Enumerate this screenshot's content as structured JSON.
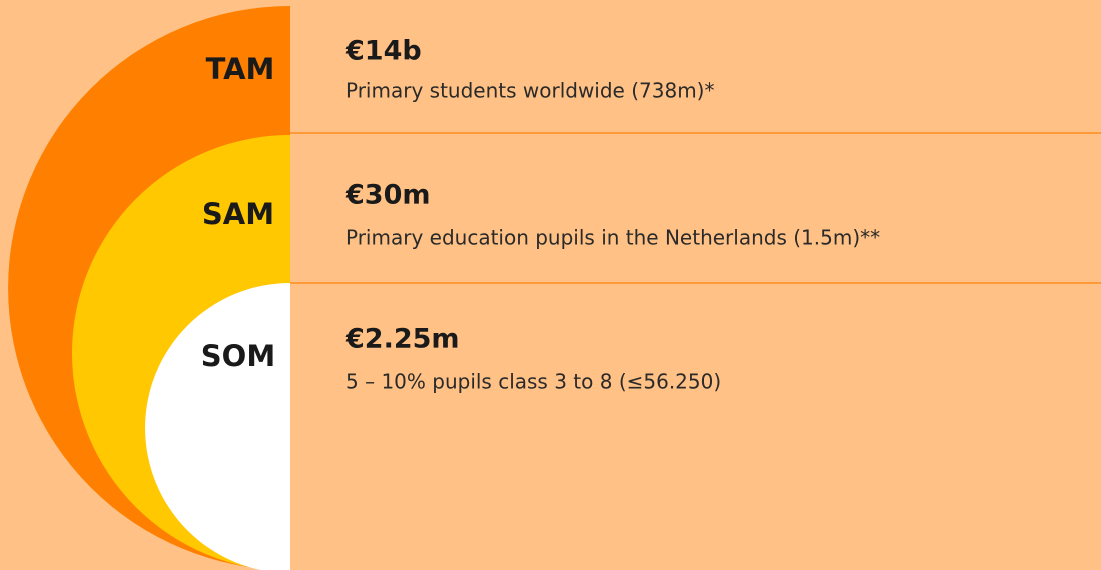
{
  "levels": [
    {
      "label": "TAM",
      "value": "€14b",
      "description": "Primary students worldwide (738m)*"
    },
    {
      "label": "SAM",
      "value": "€30m",
      "description": "Primary education pupils in the Netherlands (1.5m)**"
    },
    {
      "label": "SOM",
      "value": "€2.25m",
      "description": "5 – 10% pupils class 3 to 8 (≤56.250)"
    }
  ]
}
